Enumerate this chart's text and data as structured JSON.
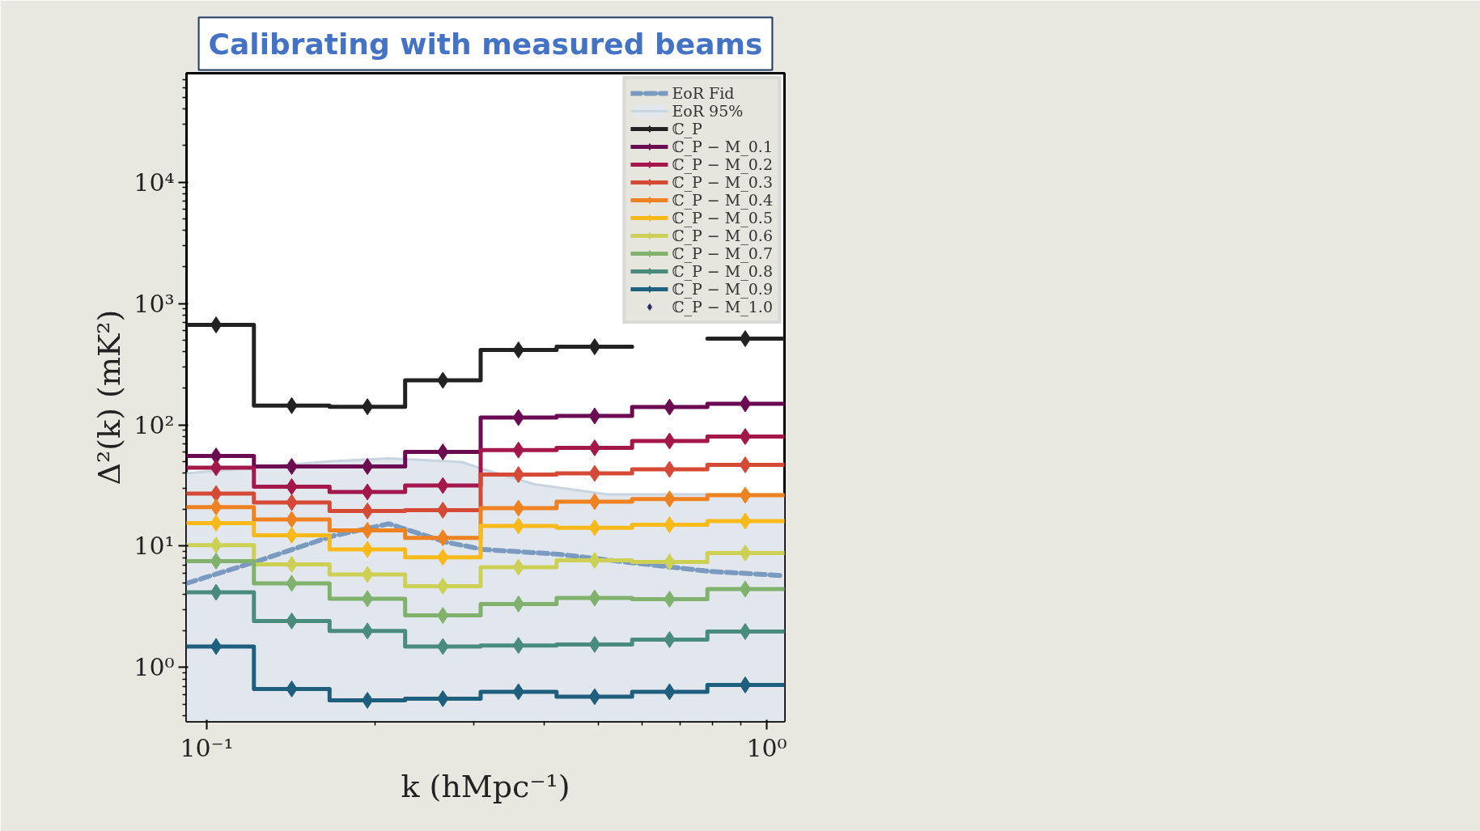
{
  "chart_data": {
    "type": "step",
    "title": "Calibrating with measured beams",
    "xlabel": "k (hMpc⁻¹)",
    "ylabel": "Δ²(k) (mK²)",
    "x": [
      0.1039,
      0.1418,
      0.1936,
      0.264,
      0.3603,
      0.4929,
      0.6707,
      0.9155
    ],
    "log": "xy",
    "xlim": [
      0.092,
      1.076
    ],
    "ylim": [
      0.36,
      79000
    ],
    "xticks": [
      {
        "value": 0.1,
        "label": "10⁻¹"
      },
      {
        "value": 1,
        "label": "10⁰"
      }
    ],
    "yticks": [
      {
        "value": 1,
        "label": "10⁰"
      },
      {
        "value": 10,
        "label": "10¹"
      },
      {
        "value": 100,
        "label": "10²"
      },
      {
        "value": 1000,
        "label": "10³"
      },
      {
        "value": 10000,
        "label": "10⁴"
      }
    ],
    "grid": false,
    "legend": "top right",
    "marker": "diamond",
    "series": [
      {
        "name": "EoR Fid",
        "type": "line",
        "line_style": "dashed",
        "marker": "none",
        "color": "#7a9ac0",
        "x": [
          0.092,
          0.1226,
          0.1675,
          0.2115,
          0.267,
          0.3118,
          0.4256,
          0.584,
          0.788,
          1.076
        ],
        "values": [
          4.94,
          7.47,
          12.1,
          15.3,
          10.8,
          9.4,
          8.58,
          7.24,
          6.21,
          5.71
        ]
      },
      {
        "name": "EoR 95%",
        "type": "area",
        "marker": "none",
        "color": "#e2e7ee",
        "x": [
          0.092,
          0.1226,
          0.1675,
          0.2115,
          0.2853,
          0.3118,
          0.3852,
          0.5196,
          1.076
        ],
        "values": [
          39.8,
          44.7,
          50.1,
          52.9,
          49.4,
          43,
          32.4,
          26.7,
          26.7
        ]
      },
      {
        "name": "ℂ_P",
        "color": "#222222",
        "values": [
          666,
          144,
          141,
          233,
          414,
          440,
          null,
          513
        ]
      },
      {
        "name": "ℂ_P − M_0.1",
        "color": "#6b0b52",
        "values": [
          55.4,
          45.4,
          45.4,
          59.8,
          114.8,
          118.3,
          140,
          149
        ]
      },
      {
        "name": "ℂ_P − M_0.2",
        "color": "#a3174a",
        "values": [
          44.3,
          30.9,
          28,
          31.6,
          62,
          64.6,
          73.6,
          80
        ]
      },
      {
        "name": "ℂ_P − M_0.3",
        "color": "#d44a36",
        "values": [
          27.1,
          22.9,
          19.5,
          19.8,
          38.9,
          39.8,
          43,
          46.8
        ]
      },
      {
        "name": "ℂ_P − M_0.4",
        "color": "#ee8120",
        "values": [
          21,
          16.6,
          13.5,
          11.7,
          20.6,
          23.3,
          24.5,
          26.3
        ]
      },
      {
        "name": "ℂ_P − M_0.5",
        "color": "#f8b91a",
        "values": [
          15.5,
          12.3,
          9.4,
          8.1,
          14.7,
          14.2,
          15,
          16.1
        ]
      },
      {
        "name": "ℂ_P − M_0.6",
        "color": "#ccd155",
        "values": [
          10.2,
          7.08,
          5.84,
          4.68,
          6.71,
          7.64,
          7.41,
          8.78
        ]
      },
      {
        "name": "ℂ_P − M_0.7",
        "color": "#80b26d",
        "values": [
          7.53,
          4.94,
          3.69,
          2.69,
          3.34,
          3.74,
          3.66,
          4.43
        ]
      },
      {
        "name": "ℂ_P − M_0.8",
        "color": "#4a8c7c",
        "values": [
          4.17,
          2.42,
          2.0,
          1.49,
          1.52,
          1.55,
          1.7,
          1.98
        ]
      },
      {
        "name": "ℂ_P − M_0.9",
        "color": "#1f5f7e",
        "values": [
          1.49,
          0.666,
          0.537,
          0.554,
          0.631,
          0.575,
          0.631,
          0.719
        ]
      },
      {
        "name": "ℂ_P − M_1.0",
        "color": "#2c2f6e",
        "values": [
          null,
          null,
          null,
          null,
          null,
          null,
          null,
          null
        ]
      }
    ]
  }
}
